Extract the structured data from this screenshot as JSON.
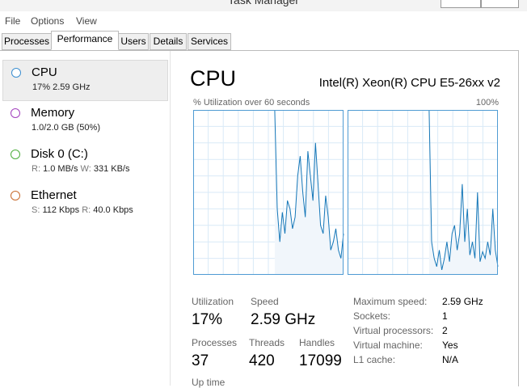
{
  "window": {
    "title": "Task Manager"
  },
  "menu": [
    "File",
    "Options",
    "View"
  ],
  "tabs": [
    {
      "label": "Processes",
      "selected": false
    },
    {
      "label": "Performance",
      "selected": true
    },
    {
      "label": "Users",
      "selected": false
    },
    {
      "label": "Details",
      "selected": false
    },
    {
      "label": "Services",
      "selected": false
    }
  ],
  "sidebar": [
    {
      "name": "CPU",
      "color": "#3b8ed0",
      "selected": true,
      "detail": [
        {
          "value": "17% 2.59 GHz"
        }
      ]
    },
    {
      "name": "Memory",
      "color": "#a23fbd",
      "selected": false,
      "detail": [
        {
          "value": "1.0/2.0 GB (50%)"
        }
      ]
    },
    {
      "name": "Disk 0 (C:)",
      "color": "#4cad3a",
      "selected": false,
      "detail": [
        {
          "label": "R:",
          "value": "1.0 MB/s"
        },
        {
          "label": "W:",
          "value": "331 KB/s"
        }
      ]
    },
    {
      "name": "Ethernet",
      "color": "#c86a2c",
      "selected": false,
      "detail": [
        {
          "label": "S:",
          "value": "112 Kbps"
        },
        {
          "label": "R:",
          "value": "40.0 Kbps"
        }
      ]
    }
  ],
  "panel": {
    "title": "CPU",
    "processor": "Intel(R) Xeon(R) CPU E5-26xx v2",
    "graph_label": "% Utilization over 60 seconds",
    "graph_max": {
      "value": 100,
      "label": "100%"
    },
    "graphs": [
      {
        "values": [
          null,
          null,
          null,
          null,
          null,
          null,
          null,
          null,
          null,
          null,
          null,
          null,
          null,
          null,
          null,
          null,
          null,
          null,
          null,
          null,
          null,
          null,
          null,
          null,
          null,
          null,
          null,
          null,
          null,
          null,
          null,
          null,
          100,
          40,
          20,
          38,
          25,
          45,
          40,
          28,
          35,
          60,
          72,
          50,
          35,
          75,
          60,
          45,
          80,
          55,
          30,
          25,
          48,
          35,
          15,
          20,
          28,
          15,
          10,
          25
        ]
      },
      {
        "values": [
          null,
          null,
          null,
          null,
          null,
          null,
          null,
          null,
          null,
          null,
          null,
          null,
          null,
          null,
          null,
          null,
          null,
          null,
          null,
          null,
          null,
          null,
          null,
          null,
          null,
          null,
          null,
          null,
          null,
          null,
          null,
          null,
          100,
          20,
          10,
          5,
          15,
          3,
          10,
          20,
          8,
          25,
          30,
          15,
          25,
          55,
          20,
          40,
          12,
          20,
          10,
          50,
          8,
          14,
          10,
          20,
          12,
          40,
          15,
          5
        ]
      }
    ],
    "stats": [
      {
        "label": "Utilization",
        "value": "17%"
      },
      {
        "label": "Speed",
        "value": "2.59 GHz"
      },
      {
        "label": "Processes",
        "value": "37"
      },
      {
        "label": "Threads",
        "value": "420"
      },
      {
        "label": "Handles",
        "value": "17099"
      },
      {
        "label": "Up time"
      }
    ],
    "specs": [
      {
        "label": "Maximum speed:",
        "value": "2.59 GHz"
      },
      {
        "label": "Sockets:",
        "value": "1"
      },
      {
        "label": "Virtual processors:",
        "value": "2"
      },
      {
        "label": "Virtual machine:",
        "value": "Yes"
      },
      {
        "label": "L1 cache:",
        "value": "N/A"
      }
    ]
  }
}
